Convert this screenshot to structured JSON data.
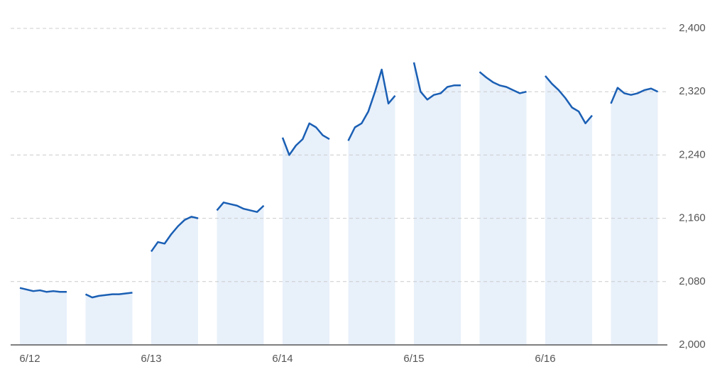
{
  "chart_data": {
    "type": "line",
    "categories": [
      "6/12",
      null,
      null,
      null,
      null,
      null,
      null,
      null,
      null,
      null,
      null,
      null,
      null,
      null,
      null,
      null,
      null,
      null,
      "6/13",
      null,
      null,
      null,
      null,
      null,
      null,
      null,
      null,
      null,
      null,
      null,
      null,
      null,
      null,
      null,
      null,
      null,
      "6/14",
      null,
      null,
      null,
      null,
      null,
      null,
      null,
      null,
      null,
      null,
      null,
      null,
      null,
      null,
      null,
      null,
      null,
      "6/15",
      null,
      null,
      null,
      null,
      null,
      null,
      null,
      null,
      null,
      null,
      null,
      null,
      null,
      null,
      null,
      null,
      null,
      "6/16",
      null,
      null,
      null,
      null,
      null,
      null,
      null,
      null,
      null,
      null,
      null,
      null,
      null,
      null,
      null,
      null
    ],
    "series": [
      {
        "color": "#1a5fb4",
        "values": [
          2072,
          2070,
          2068,
          2069,
          2067,
          2068,
          2067,
          2067,
          null,
          2064,
          2060,
          2062,
          2063,
          2064,
          2064,
          2065,
          2066,
          null,
          2118,
          2130,
          2128,
          2140,
          2150,
          2158,
          2162,
          2160,
          null,
          2170,
          2180,
          2178,
          2176,
          2172,
          2170,
          2168,
          2176,
          null,
          2262,
          2240,
          2252,
          2260,
          2280,
          2275,
          2265,
          2260,
          null,
          2258,
          2275,
          2280,
          2295,
          2320,
          2348,
          2305,
          2315,
          null,
          2357,
          2320,
          2310,
          2316,
          2318,
          2326,
          2328,
          2328,
          null,
          2345,
          2338,
          2332,
          2328,
          2326,
          2322,
          2318,
          2320,
          null,
          2340,
          2330,
          2322,
          2312,
          2300,
          2295,
          2280,
          2290,
          null,
          2305,
          2325,
          2318,
          2316,
          2318,
          2322,
          2324,
          2320
        ]
      }
    ],
    "area_color": "#e8f0fa",
    "ylim": [
      2000,
      2400
    ],
    "yticks": [
      {
        "value": 2000,
        "label": "2,000"
      },
      {
        "value": 2080,
        "label": "2,080"
      },
      {
        "value": 2160,
        "label": "2,160"
      },
      {
        "value": 2240,
        "label": "2,240"
      },
      {
        "value": 2320,
        "label": "2,320"
      },
      {
        "value": 2400,
        "label": "2,400"
      }
    ],
    "grid": true
  }
}
